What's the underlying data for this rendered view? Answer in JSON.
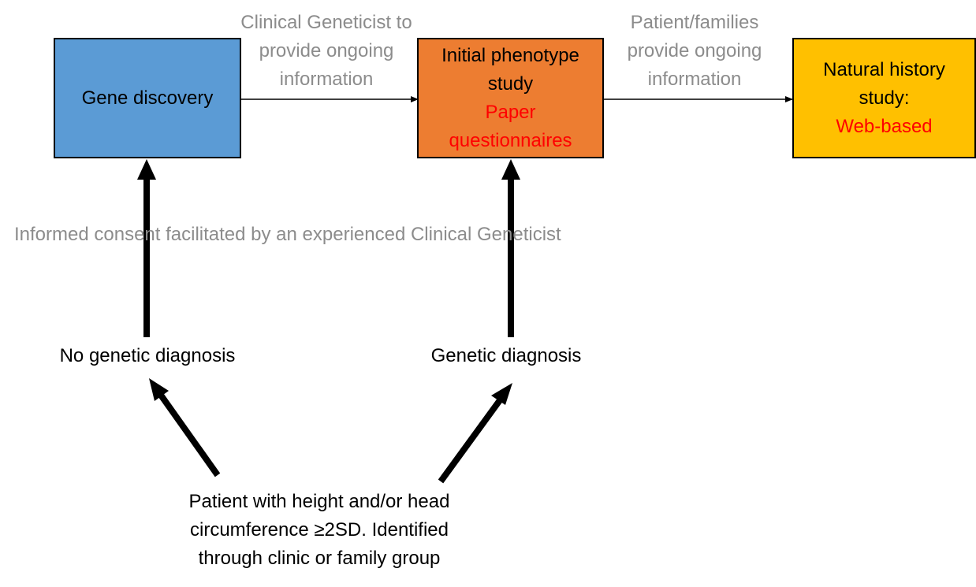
{
  "colors": {
    "gene_discovery_fill": "#5b9bd5",
    "phenotype_fill": "#ed7d31",
    "natural_history_fill": "#ffc000",
    "highlight_text": "#ff0000",
    "annotation_text": "#8c8c8c"
  },
  "boxes": {
    "gene_discovery": {
      "line1": "Gene discovery"
    },
    "phenotype_study": {
      "line1": "Initial phenotype",
      "line2": "study",
      "line3": "Paper",
      "line4": "questionnaires"
    },
    "natural_history": {
      "line1": "Natural history",
      "line2": "study:",
      "line3": "Web-based"
    }
  },
  "edge_labels": {
    "geneticist_info": {
      "line1": "Clinical Geneticist to",
      "line2": "provide ongoing",
      "line3": "information"
    },
    "families_info": {
      "line1": "Patient/families",
      "line2": "provide ongoing",
      "line3": "information"
    }
  },
  "consent_note": "Informed consent facilitated by an experienced Clinical Geneticist",
  "nodes": {
    "no_genetic_diagnosis": "No genetic diagnosis",
    "genetic_diagnosis": "Genetic diagnosis",
    "patient": {
      "line1": "Patient with height and/or head",
      "line2": "circumference ≥2SD. Identified",
      "line3": "through clinic or family group"
    }
  }
}
